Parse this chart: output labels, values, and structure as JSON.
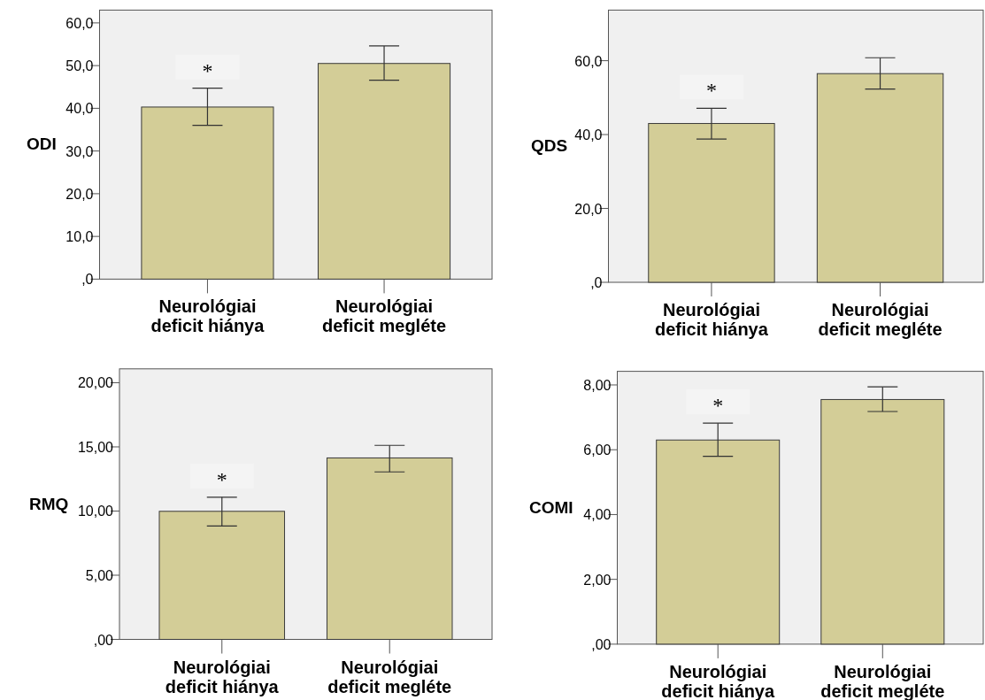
{
  "chart_data": [
    {
      "type": "bar",
      "ylabel": "ODI",
      "categories": [
        "Neurológiai deficit hiánya",
        "Neurológiai deficit megléte"
      ],
      "values": [
        40.3,
        50.5
      ],
      "errors": [
        [
          36.0,
          44.7
        ],
        [
          46.6,
          54.6
        ]
      ],
      "color": "#d3cd97",
      "ylim": [
        0,
        63
      ],
      "yticks": [
        {
          "value": 0,
          "label": ",0"
        },
        {
          "value": 10,
          "label": "10,0"
        },
        {
          "value": 20,
          "label": "20,0"
        },
        {
          "value": 30,
          "label": "30,0"
        },
        {
          "value": 40,
          "label": "40,0"
        },
        {
          "value": 50,
          "label": "50,0"
        },
        {
          "value": 60,
          "label": "60,0"
        }
      ],
      "grid": false,
      "annotations": [
        "*"
      ]
    },
    {
      "type": "bar",
      "ylabel": "QDS",
      "categories": [
        "Neurológiai deficit hiánya",
        "Neurológiai deficit megléte"
      ],
      "values": [
        43.0,
        56.5
      ],
      "errors": [
        [
          38.8,
          47.1
        ],
        [
          52.3,
          60.8
        ]
      ],
      "color": "#d3cd97",
      "ylim": [
        0,
        73.7
      ],
      "yticks": [
        {
          "value": 0,
          "label": ",0"
        },
        {
          "value": 20,
          "label": "20,0"
        },
        {
          "value": 40,
          "label": "40,0"
        },
        {
          "value": 60,
          "label": "60,0"
        }
      ],
      "grid": false,
      "annotations": [
        "*"
      ]
    },
    {
      "type": "bar",
      "ylabel": "RMQ",
      "categories": [
        "Neurológiai deficit hiánya",
        "Neurológiai deficit megléte"
      ],
      "values": [
        9.98,
        14.14
      ],
      "errors": [
        [
          8.84,
          11.08
        ],
        [
          13.05,
          15.12
        ]
      ],
      "color": "#d3cd97",
      "ylim": [
        0,
        21.08
      ],
      "yticks": [
        {
          "value": 0,
          "label": ",00"
        },
        {
          "value": 5,
          "label": "5,00"
        },
        {
          "value": 10,
          "label": "10,00"
        },
        {
          "value": 15,
          "label": "15,00"
        },
        {
          "value": 20,
          "label": "20,00"
        }
      ],
      "grid": false,
      "annotations": [
        "*"
      ]
    },
    {
      "type": "bar",
      "ylabel": "COMI",
      "categories": [
        "Neurológiai deficit hiánya",
        "Neurológiai deficit megléte"
      ],
      "values": [
        6.3,
        7.55
      ],
      "errors": [
        [
          5.8,
          6.82
        ],
        [
          7.18,
          7.94
        ]
      ],
      "color": "#d3cd97",
      "ylim": [
        0,
        8.42
      ],
      "yticks": [
        {
          "value": 0,
          "label": ",00"
        },
        {
          "value": 2,
          "label": "2,00"
        },
        {
          "value": 4,
          "label": "4,00"
        },
        {
          "value": 6,
          "label": "6,00"
        },
        {
          "value": 8,
          "label": "8,00"
        }
      ],
      "grid": false,
      "annotations": [
        "*"
      ]
    }
  ]
}
